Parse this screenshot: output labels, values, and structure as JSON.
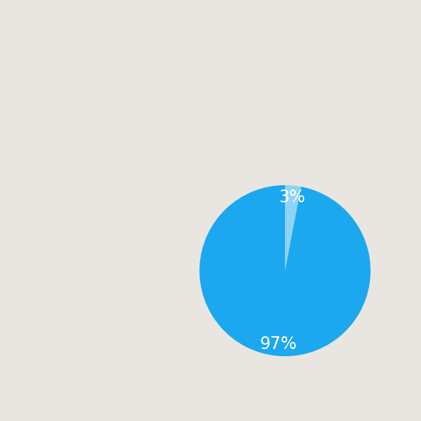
{
  "chart_data": {
    "type": "pie",
    "values": [
      3,
      97
    ],
    "value_labels": [
      "3%",
      "97%"
    ],
    "colors": [
      "#8fd3f7",
      "#1ba8ef"
    ],
    "data_labels": true
  }
}
